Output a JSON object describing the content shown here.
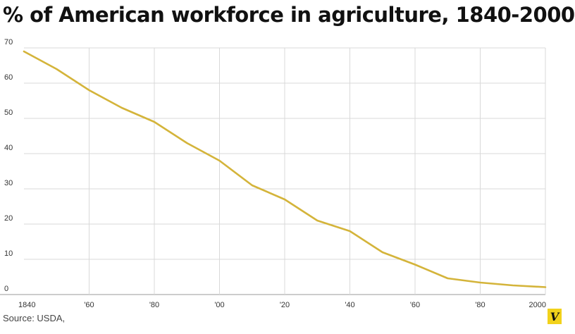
{
  "title": "% of American workforce in agriculture, 1840-2000",
  "source": "Source: USDA,",
  "logo_text": "V",
  "colors": {
    "line": "#d4b43a",
    "grid": "#d9d9d9",
    "logo_bg": "#f2d21b"
  },
  "chart_data": {
    "type": "line",
    "title": "% of American workforce in agriculture, 1840-2000",
    "xlabel": "",
    "ylabel": "",
    "x": [
      1840,
      1850,
      1860,
      1870,
      1880,
      1890,
      1900,
      1910,
      1920,
      1930,
      1940,
      1950,
      1960,
      1970,
      1980,
      1990,
      2000
    ],
    "series": [
      {
        "values": [
          69,
          64,
          58,
          53,
          49,
          43,
          38,
          31,
          27,
          21,
          18,
          12,
          8.5,
          4.6,
          3.4,
          2.6,
          2.1
        ]
      }
    ],
    "xlim": [
      1840,
      2000
    ],
    "ylim": [
      0,
      70
    ],
    "y_ticks": [
      0,
      10,
      20,
      30,
      40,
      50,
      60,
      70
    ],
    "x_ticks": [
      {
        "value": 1840,
        "label": "1840"
      },
      {
        "value": 1860,
        "label": "'60"
      },
      {
        "value": 1880,
        "label": "'80"
      },
      {
        "value": 1900,
        "label": "'00"
      },
      {
        "value": 1920,
        "label": "'20"
      },
      {
        "value": 1940,
        "label": "'40"
      },
      {
        "value": 1960,
        "label": "'60"
      },
      {
        "value": 1980,
        "label": "'80"
      },
      {
        "value": 2000,
        "label": "2000"
      }
    ],
    "grid": true,
    "legend": "none"
  }
}
